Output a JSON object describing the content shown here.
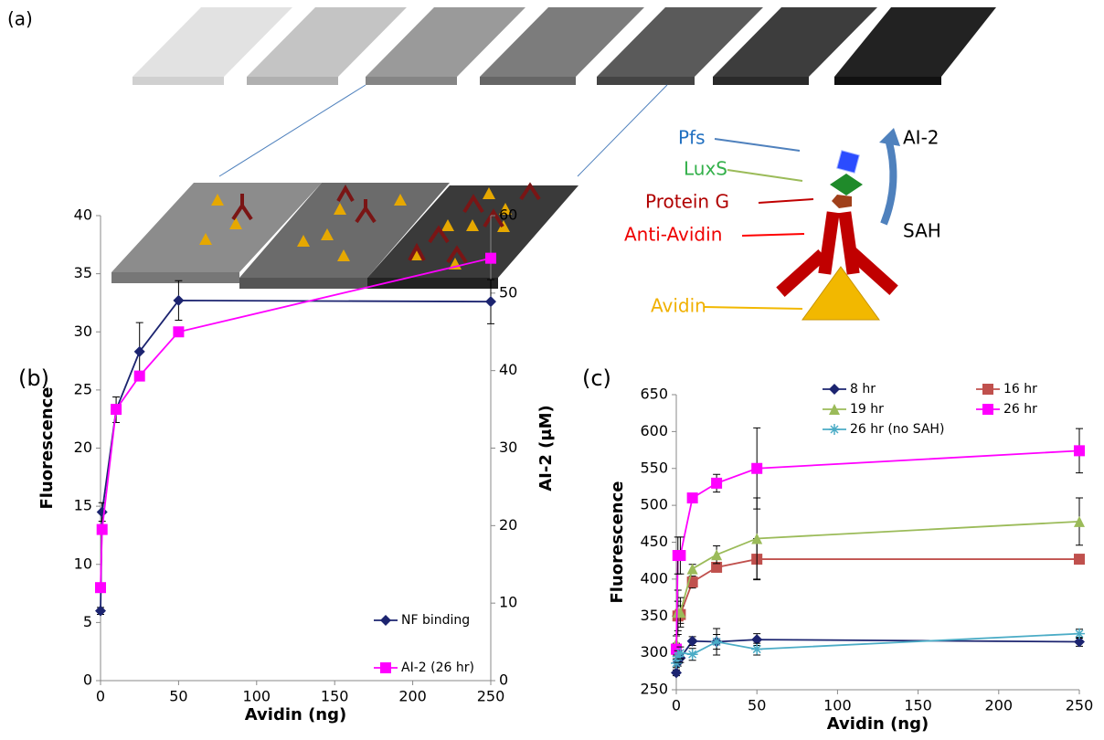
{
  "schematic": {
    "panel_label": "(a)",
    "labels": {
      "pfs": "Pfs",
      "luxs": "LuxS",
      "protein_g": "Protein G",
      "anti_avidin": "Anti-Avidin",
      "avidin": "Avidin",
      "ai2": "AI-2",
      "sah": "SAH"
    }
  },
  "chart_data": [
    {
      "type": "line",
      "panel_label": "(b)",
      "xlabel": "Avidin (ng)",
      "ylabel": "Fluorescence",
      "y2label": "AI-2 (μM)",
      "x": [
        0,
        1,
        10,
        25,
        50,
        250
      ],
      "xlim": [
        0,
        250
      ],
      "xticks": [
        0,
        50,
        100,
        150,
        200,
        250
      ],
      "ylim": [
        0,
        40
      ],
      "yticks": [
        0,
        5,
        10,
        15,
        20,
        25,
        30,
        35,
        40
      ],
      "y2lim": [
        0,
        60
      ],
      "y2ticks": [
        0,
        10,
        20,
        30,
        40,
        50,
        60
      ],
      "legend": "lower right",
      "series": [
        {
          "name": "NF binding",
          "color": "#1c2470",
          "marker": "diamond",
          "values": [
            6,
            14.5,
            23.3,
            28.3,
            32.7,
            32.6
          ],
          "errors": [
            0.3,
            0.8,
            1.1,
            2.5,
            1.7,
            1.9
          ]
        },
        {
          "name": "AI-2 (26 hr)",
          "color": "#ff00ff",
          "marker": "square",
          "axis": "y2",
          "values": [
            12,
            19.5,
            35,
            39.3,
            45,
            54.5
          ]
        }
      ]
    },
    {
      "type": "line",
      "panel_label": "(c)",
      "xlabel": "Avidin (ng)",
      "ylabel": "Fluorescence",
      "x": [
        0,
        1,
        2.5,
        10,
        25,
        50,
        250
      ],
      "xlim": [
        0,
        250
      ],
      "xticks": [
        0,
        50,
        100,
        150,
        200,
        250
      ],
      "ylim": [
        250,
        650
      ],
      "yticks": [
        250,
        300,
        350,
        400,
        450,
        500,
        550,
        600,
        650
      ],
      "legend": "top",
      "series": [
        {
          "name": "8 hr",
          "color": "#1c2470",
          "marker": "diamond",
          "values": [
            273,
            287,
            293,
            316,
            315,
            318,
            315
          ],
          "errors": [
            4,
            5,
            6,
            6,
            18,
            8,
            6
          ]
        },
        {
          "name": "16 hr",
          "color": "#c0504d",
          "marker": "square",
          "values": [
            305,
            350,
            352,
            396,
            416,
            427,
            427
          ],
          "errors": [
            8,
            20,
            12,
            8,
            6,
            28,
            2
          ]
        },
        {
          "name": "19 hr",
          "color": "#9bbb59",
          "marker": "triangle",
          "values": [
            313,
            355,
            355,
            414,
            433,
            455,
            478
          ],
          "errors": [
            10,
            30,
            20,
            6,
            12,
            55,
            32
          ]
        },
        {
          "name": "26 hr",
          "color": "#ff00ff",
          "marker": "square",
          "values": [
            305,
            432,
            432,
            510,
            530,
            550,
            574
          ],
          "errors": [
            5,
            25,
            25,
            4,
            12,
            55,
            30
          ]
        },
        {
          "name": "26 hr (no SAH)",
          "color": "#4bacc6",
          "marker": "star",
          "values": [
            286,
            295,
            300,
            298,
            315,
            305,
            326
          ],
          "errors": [
            6,
            8,
            8,
            8,
            10,
            8,
            6
          ]
        }
      ]
    }
  ]
}
